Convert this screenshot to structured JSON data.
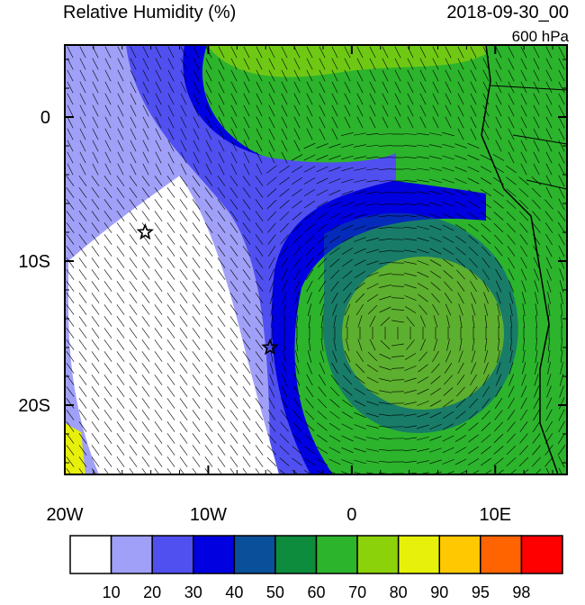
{
  "header": {
    "title": "Relative Humidity (%)",
    "date": "2018-09-30_00",
    "level": "600 hPa"
  },
  "map": {
    "lon_range": [
      -20,
      15
    ],
    "lat_range": [
      5,
      -25
    ],
    "lon_ticks": [
      {
        "value": -20,
        "label": "20W"
      },
      {
        "value": -10,
        "label": "10W"
      },
      {
        "value": 0,
        "label": "0"
      },
      {
        "value": 10,
        "label": "10E"
      }
    ],
    "lat_ticks": [
      {
        "value": 0,
        "label": "0"
      },
      {
        "value": -10,
        "label": "10S"
      },
      {
        "value": -20,
        "label": "20S"
      }
    ],
    "markers": [
      {
        "lon": -14.4,
        "lat": -8
      },
      {
        "lon": -5.7,
        "lat": -16
      }
    ]
  },
  "colorbar": {
    "levels": [
      10,
      20,
      30,
      40,
      50,
      60,
      70,
      80,
      90,
      95,
      98
    ],
    "colors": [
      "#ffffff",
      "#a0a0f8",
      "#5050f0",
      "#0000e0",
      "#0a4f9a",
      "#0c8c3c",
      "#2cb42c",
      "#8cd20a",
      "#e6f00a",
      "#ffc800",
      "#ff6400",
      "#ff0000"
    ]
  }
}
